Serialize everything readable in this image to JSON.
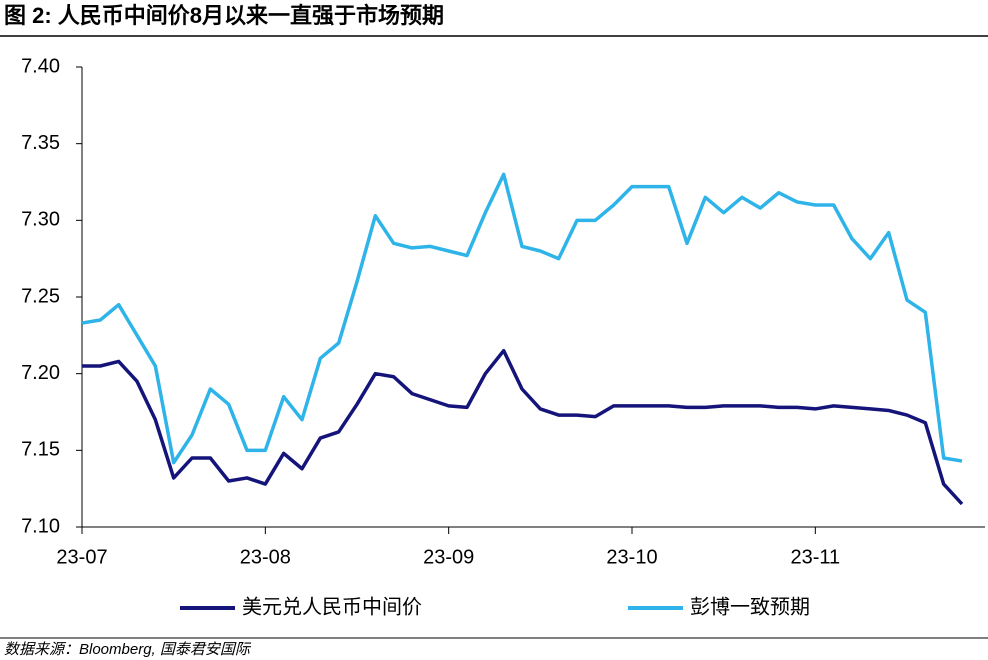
{
  "chart_data": {
    "type": "line",
    "title": "图 2:  人民币中间价8月以来一直强于市场预期",
    "source": "数据来源：Bloomberg, 国泰君安国际",
    "categories": [
      "23-07",
      null,
      null,
      null,
      null,
      null,
      null,
      null,
      null,
      null,
      "23-08",
      null,
      null,
      null,
      null,
      null,
      null,
      null,
      null,
      null,
      "23-09",
      null,
      null,
      null,
      null,
      null,
      null,
      null,
      null,
      null,
      "23-10",
      null,
      null,
      null,
      null,
      null,
      null,
      null,
      null,
      null,
      "23-11",
      null,
      null,
      null,
      null,
      null,
      null,
      null,
      null
    ],
    "series": [
      {
        "name": "美元兑人民币中间价",
        "color": "#14147a",
        "values": [
          7.205,
          7.205,
          7.208,
          7.195,
          7.17,
          7.132,
          7.145,
          7.145,
          7.13,
          7.132,
          7.128,
          7.148,
          7.138,
          7.158,
          7.162,
          7.18,
          7.2,
          7.198,
          7.187,
          7.183,
          7.179,
          7.178,
          7.2,
          7.215,
          7.19,
          7.177,
          7.173,
          7.173,
          7.172,
          7.179,
          7.179,
          7.179,
          7.179,
          7.178,
          7.178,
          7.179,
          7.179,
          7.179,
          7.178,
          7.178,
          7.177,
          7.179,
          7.178,
          7.177,
          7.176,
          7.173,
          7.168,
          7.128,
          7.115
        ]
      },
      {
        "name": "彭博一致预期",
        "color": "#2eb4e8",
        "values": [
          7.233,
          7.235,
          7.245,
          7.225,
          7.205,
          7.142,
          7.16,
          7.19,
          7.18,
          7.15,
          7.15,
          7.185,
          7.17,
          7.21,
          7.22,
          7.26,
          7.303,
          7.285,
          7.282,
          7.283,
          7.28,
          7.277,
          7.305,
          7.33,
          7.283,
          7.28,
          7.275,
          7.3,
          7.3,
          7.31,
          7.322,
          7.322,
          7.322,
          7.285,
          7.315,
          7.305,
          7.315,
          7.308,
          7.318,
          7.312,
          7.31,
          7.31,
          7.288,
          7.275,
          7.292,
          7.248,
          7.24,
          7.145,
          7.143
        ]
      }
    ],
    "ylim": [
      7.1,
      7.4
    ],
    "yticks": [
      {
        "value": 7.1,
        "label": "7.10"
      },
      7.15,
      {
        "value": 7.2,
        "label": "7.20"
      },
      7.25,
      {
        "value": 7.3,
        "label": "7.30"
      },
      7.35,
      {
        "value": 7.4,
        "label": "7.40"
      }
    ],
    "grid": false,
    "legend": "bottom"
  }
}
